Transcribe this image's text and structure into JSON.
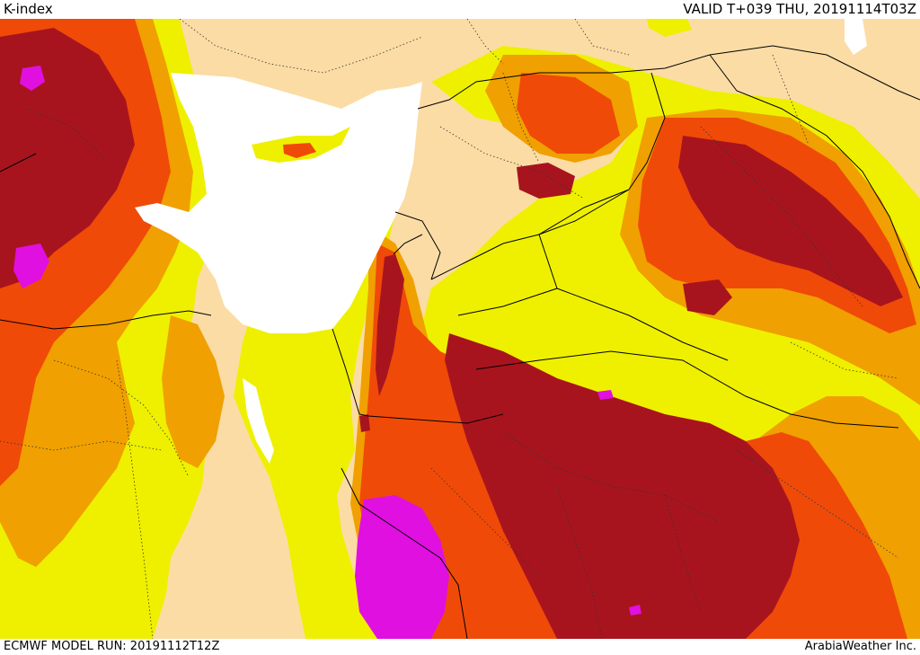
{
  "header": {
    "title": "K-index",
    "valid_time": "VALID T+039 THU, 20191114T03Z"
  },
  "footer": {
    "model_run": "ECMWF MODEL RUN: 20191112T12Z",
    "credit": "ArabiaWeather Inc."
  },
  "map": {
    "field": "K-index",
    "colors": {
      "land_base": "#fbdca5",
      "water": "#ffffff",
      "yellow": "#eef000",
      "light_orange": "#f0a000",
      "orange": "#f04a08",
      "dark_red": "#a8141e",
      "magenta": "#e010e0",
      "border": "#000000"
    }
  }
}
